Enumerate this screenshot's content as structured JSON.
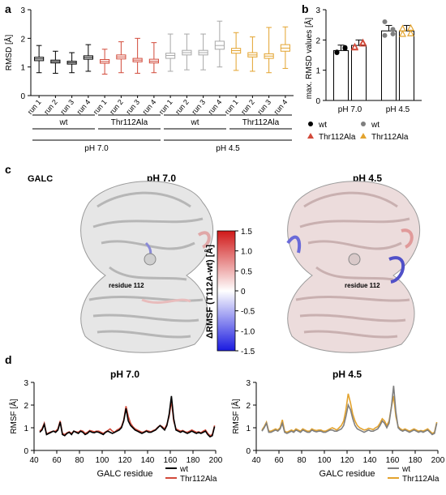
{
  "colors": {
    "wt": "#000000",
    "wt_light": "#7f7f7f",
    "mut_red": "#d24a3a",
    "mut_orange": "#e3a32e",
    "grey_box": "#a8a8a8",
    "colorbar_hi": "#d01818",
    "colorbar_mid": "#ffffff",
    "colorbar_lo": "#1a1ae0"
  },
  "panels": {
    "a": "a",
    "b": "b",
    "c": "c",
    "d": "d"
  },
  "panel_c": {
    "galc_label": "GALC",
    "left_title": "pH 7.0",
    "right_title": "pH 4.5",
    "residue_left": "residue 112",
    "residue_right": "residue 112",
    "colorbar_label": "ΔRMSF (T112A-wt) [Å]",
    "colorbar_ticks": [
      "1.5",
      "1.0",
      "0.5",
      "0",
      "-0.5",
      "-1.0",
      "-1.5"
    ]
  },
  "chart_data": [
    {
      "id": "a",
      "type": "box",
      "ylabel": "RMSD [Å]",
      "ylim": [
        0,
        3
      ],
      "yticks": [
        0,
        1,
        2,
        3
      ],
      "categories": [
        "run 1",
        "run 2",
        "run 3",
        "run 4",
        "run 1",
        "run 2",
        "run 3",
        "run 4",
        "run 1",
        "run 2",
        "run 3",
        "run 4",
        "run 1",
        "run 2",
        "run 3",
        "run 4"
      ],
      "group_labels": [
        "wt",
        "Thr112Ala",
        "wt",
        "Thr112Ala"
      ],
      "ph_labels": [
        "pH 7.0",
        "pH 4.5"
      ],
      "boxes": [
        {
          "min": 0.8,
          "q1": 1.22,
          "median": 1.28,
          "q3": 1.34,
          "max": 1.75,
          "group": "wt_7"
        },
        {
          "min": 0.78,
          "q1": 1.14,
          "median": 1.19,
          "q3": 1.24,
          "max": 1.55,
          "group": "wt_7"
        },
        {
          "min": 0.8,
          "q1": 1.1,
          "median": 1.15,
          "q3": 1.2,
          "max": 1.5,
          "group": "wt_7"
        },
        {
          "min": 0.85,
          "q1": 1.27,
          "median": 1.33,
          "q3": 1.39,
          "max": 1.78,
          "group": "wt_7"
        },
        {
          "min": 0.75,
          "q1": 1.13,
          "median": 1.19,
          "q3": 1.26,
          "max": 1.62,
          "group": "mut_7"
        },
        {
          "min": 0.8,
          "q1": 1.28,
          "median": 1.35,
          "q3": 1.42,
          "max": 1.88,
          "group": "mut_7"
        },
        {
          "min": 0.78,
          "q1": 1.18,
          "median": 1.24,
          "q3": 1.3,
          "max": 2.0,
          "group": "mut_7"
        },
        {
          "min": 0.8,
          "q1": 1.14,
          "median": 1.2,
          "q3": 1.27,
          "max": 1.85,
          "group": "mut_7"
        },
        {
          "min": 0.85,
          "q1": 1.3,
          "median": 1.4,
          "q3": 1.48,
          "max": 2.15,
          "group": "wt_45"
        },
        {
          "min": 0.9,
          "q1": 1.42,
          "median": 1.5,
          "q3": 1.58,
          "max": 2.15,
          "group": "wt_45"
        },
        {
          "min": 0.9,
          "q1": 1.42,
          "median": 1.5,
          "q3": 1.58,
          "max": 2.15,
          "group": "wt_45"
        },
        {
          "min": 1.0,
          "q1": 1.62,
          "median": 1.75,
          "q3": 1.9,
          "max": 2.6,
          "group": "wt_45"
        },
        {
          "min": 0.88,
          "q1": 1.48,
          "median": 1.57,
          "q3": 1.65,
          "max": 2.2,
          "group": "mut_45"
        },
        {
          "min": 0.85,
          "q1": 1.35,
          "median": 1.42,
          "q3": 1.5,
          "max": 2.05,
          "group": "mut_45"
        },
        {
          "min": 0.8,
          "q1": 1.3,
          "median": 1.38,
          "q3": 1.46,
          "max": 2.38,
          "group": "mut_45"
        },
        {
          "min": 0.95,
          "q1": 1.55,
          "median": 1.66,
          "q3": 1.78,
          "max": 2.4,
          "group": "mut_45"
        }
      ]
    },
    {
      "id": "b",
      "type": "bar",
      "ylabel": "max. RMSD values [Å]",
      "ylim": [
        0,
        3
      ],
      "yticks": [
        0,
        1,
        2,
        3
      ],
      "categories": [
        "pH 7.0",
        "pH 4.5"
      ],
      "series": [
        {
          "name": "wt",
          "values": [
            1.65,
            2.3
          ],
          "points": [
            [
              1.6,
              1.72,
              1.58,
              1.75
            ],
            [
              2.15,
              2.35,
              2.6,
              2.2
            ]
          ]
        },
        {
          "name": "Thr112Ala",
          "values": [
            1.82,
            2.3
          ],
          "points": [
            [
              1.75,
              1.88,
              1.78,
              1.92
            ],
            [
              2.2,
              2.4,
              2.38,
              2.22
            ]
          ]
        }
      ],
      "legend": [
        {
          "label": "wt",
          "marker": "circle",
          "color": "#000000"
        },
        {
          "label": "Thr112Ala",
          "marker": "triangle",
          "color": "#d24a3a"
        },
        {
          "label": "wt",
          "marker": "circle",
          "color": "#7f7f7f"
        },
        {
          "label": "Thr112Ala",
          "marker": "triangle",
          "color": "#e3a32e"
        }
      ]
    },
    {
      "id": "d1",
      "type": "line",
      "title": "pH 7.0",
      "xlabel": "GALC residue",
      "ylabel": "RMSF [Å]",
      "xlim": [
        40,
        200
      ],
      "ylim": [
        0,
        3
      ],
      "xticks": [
        40,
        60,
        80,
        100,
        120,
        140,
        160,
        180,
        200
      ],
      "x": [
        45,
        47,
        49,
        51,
        53,
        55,
        57,
        59,
        61,
        63,
        65,
        67,
        69,
        71,
        73,
        75,
        77,
        79,
        81,
        83,
        85,
        87,
        89,
        91,
        93,
        95,
        97,
        99,
        101,
        103,
        105,
        107,
        109,
        111,
        113,
        115,
        117,
        119,
        121,
        123,
        125,
        127,
        129,
        131,
        133,
        135,
        137,
        139,
        141,
        143,
        145,
        147,
        149,
        151,
        153,
        155,
        157,
        159,
        161,
        163,
        165,
        167,
        169,
        171,
        173,
        175,
        177,
        179,
        181,
        183,
        185,
        187,
        189,
        191,
        193,
        195,
        197,
        199
      ],
      "series": [
        {
          "name": "wt",
          "values": [
            0.8,
            0.9,
            1.15,
            0.7,
            0.75,
            0.8,
            0.85,
            0.8,
            0.9,
            1.25,
            0.7,
            0.65,
            0.75,
            0.8,
            0.7,
            0.85,
            0.8,
            0.75,
            0.85,
            0.8,
            0.7,
            0.75,
            0.85,
            0.8,
            0.78,
            0.82,
            0.8,
            0.75,
            0.7,
            0.8,
            0.85,
            0.8,
            0.75,
            0.8,
            0.85,
            0.9,
            1.0,
            1.3,
            1.85,
            1.3,
            1.1,
            1.0,
            0.9,
            0.85,
            0.8,
            0.75,
            0.8,
            0.85,
            0.8,
            0.8,
            0.85,
            0.9,
            1.0,
            1.1,
            1.0,
            0.9,
            1.1,
            1.6,
            2.4,
            1.4,
            0.9,
            0.85,
            0.8,
            0.85,
            0.8,
            0.75,
            0.8,
            0.85,
            0.8,
            0.75,
            0.8,
            0.75,
            0.8,
            0.85,
            0.7,
            0.6,
            0.65,
            1.05
          ]
        },
        {
          "name": "Thr112Ala",
          "values": [
            0.85,
            0.95,
            1.2,
            0.72,
            0.78,
            0.82,
            0.85,
            0.85,
            0.95,
            1.3,
            0.75,
            0.7,
            0.78,
            0.82,
            0.75,
            0.85,
            0.82,
            0.8,
            0.88,
            0.85,
            0.75,
            0.8,
            0.88,
            0.85,
            0.82,
            0.85,
            0.85,
            0.8,
            0.75,
            0.82,
            0.88,
            0.95,
            0.85,
            0.8,
            0.9,
            0.95,
            1.05,
            1.35,
            1.95,
            1.5,
            1.2,
            1.05,
            0.95,
            0.9,
            0.85,
            0.8,
            0.82,
            0.88,
            0.85,
            0.82,
            0.88,
            0.92,
            1.02,
            1.1,
            1.05,
            0.95,
            1.15,
            1.5,
            2.2,
            1.3,
            0.95,
            0.9,
            0.85,
            0.88,
            0.82,
            0.8,
            0.85,
            0.9,
            0.85,
            0.8,
            0.82,
            0.78,
            0.85,
            0.9,
            0.75,
            0.65,
            0.7,
            1.1
          ]
        }
      ],
      "legend": [
        "wt",
        "Thr112Ala"
      ]
    },
    {
      "id": "d2",
      "type": "line",
      "title": "pH 4.5",
      "xlabel": "GALC residue",
      "ylabel": "RMSF [Å]",
      "xlim": [
        40,
        200
      ],
      "ylim": [
        0,
        3
      ],
      "xticks": [
        40,
        60,
        80,
        100,
        120,
        140,
        160,
        180,
        200
      ],
      "x": [
        45,
        47,
        49,
        51,
        53,
        55,
        57,
        59,
        61,
        63,
        65,
        67,
        69,
        71,
        73,
        75,
        77,
        79,
        81,
        83,
        85,
        87,
        89,
        91,
        93,
        95,
        97,
        99,
        101,
        103,
        105,
        107,
        109,
        111,
        113,
        115,
        117,
        119,
        121,
        123,
        125,
        127,
        129,
        131,
        133,
        135,
        137,
        139,
        141,
        143,
        145,
        147,
        149,
        151,
        153,
        155,
        157,
        159,
        161,
        163,
        165,
        167,
        169,
        171,
        173,
        175,
        177,
        179,
        181,
        183,
        185,
        187,
        189,
        191,
        193,
        195,
        197,
        199
      ],
      "series": [
        {
          "name": "wt",
          "values": [
            0.85,
            1.0,
            1.2,
            0.8,
            0.8,
            0.85,
            0.9,
            0.85,
            0.95,
            1.2,
            0.8,
            0.75,
            0.8,
            0.85,
            0.8,
            0.9,
            0.85,
            0.8,
            0.9,
            0.85,
            0.8,
            0.8,
            0.9,
            0.85,
            0.82,
            0.85,
            0.85,
            0.8,
            0.8,
            0.85,
            0.9,
            0.9,
            0.85,
            0.85,
            0.9,
            0.95,
            1.1,
            1.5,
            2.0,
            1.8,
            1.4,
            1.1,
            0.95,
            0.9,
            0.85,
            0.8,
            0.85,
            0.9,
            0.85,
            0.85,
            0.9,
            0.95,
            1.1,
            1.3,
            1.2,
            1.0,
            1.2,
            1.9,
            2.85,
            1.7,
            1.0,
            0.9,
            0.85,
            0.9,
            0.85,
            0.8,
            0.85,
            0.9,
            0.85,
            0.8,
            0.85,
            0.8,
            0.85,
            0.9,
            0.8,
            0.7,
            0.75,
            1.2
          ]
        },
        {
          "name": "Thr112Ala",
          "values": [
            0.9,
            1.05,
            1.25,
            0.85,
            0.85,
            0.9,
            0.95,
            0.9,
            1.0,
            1.35,
            0.85,
            0.8,
            0.85,
            0.9,
            0.85,
            0.95,
            0.9,
            0.85,
            0.95,
            0.9,
            0.85,
            0.85,
            0.95,
            0.9,
            0.88,
            0.9,
            0.9,
            0.85,
            0.85,
            0.9,
            0.95,
            1.0,
            0.95,
            0.9,
            1.0,
            1.1,
            1.3,
            1.8,
            2.5,
            2.1,
            1.6,
            1.3,
            1.1,
            1.0,
            0.95,
            0.9,
            0.92,
            0.98,
            0.95,
            0.92,
            1.0,
            1.05,
            1.2,
            1.4,
            1.3,
            1.1,
            1.3,
            1.9,
            2.4,
            1.5,
            1.05,
            0.95,
            0.9,
            0.95,
            0.9,
            0.85,
            0.9,
            0.95,
            0.9,
            0.85,
            0.88,
            0.85,
            0.9,
            0.95,
            0.85,
            0.75,
            0.8,
            1.25
          ]
        }
      ],
      "legend": [
        "wt",
        "Thr112Ala"
      ]
    }
  ]
}
